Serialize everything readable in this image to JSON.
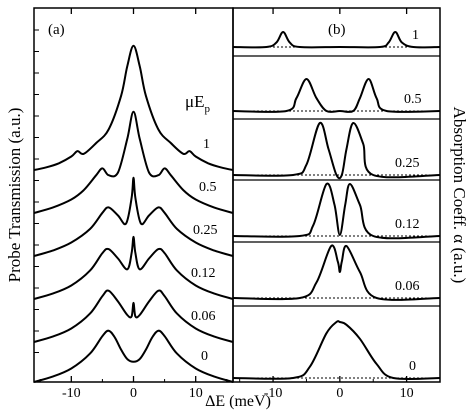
{
  "figure": {
    "ylabel_left": "Probe Transmission (a.u.)",
    "ylabel_right": "Absorption Coeff. α (a.u.)",
    "xlabel": "ΔE (meV)",
    "legend_title_main": "μE",
    "legend_title_sub": "p"
  },
  "chart_data": [
    {
      "type": "line",
      "panel_label": "(a)",
      "xlim": [
        -16,
        16
      ],
      "x_ticks": [
        -10,
        0,
        10
      ],
      "series": [
        {
          "name": "1",
          "x": [
            -16,
            -14,
            -12,
            -10,
            -9,
            -8,
            -6,
            -4,
            -2,
            -1,
            0,
            1,
            2,
            4,
            6,
            8,
            9,
            10,
            12,
            14,
            16
          ],
          "y": [
            1.0,
            1.2,
            1.5,
            2.0,
            2.4,
            2.2,
            3.0,
            4.0,
            6.5,
            8.7,
            10.2,
            8.7,
            6.5,
            4.0,
            3.0,
            2.2,
            2.4,
            2.0,
            1.5,
            1.2,
            1.0
          ]
        },
        {
          "name": "0.5",
          "x": [
            -16,
            -13,
            -10,
            -8,
            -6,
            -5,
            -4,
            -2.5,
            -1,
            0,
            1,
            2.5,
            4,
            5,
            6,
            8,
            10,
            13,
            16
          ],
          "y": [
            1.0,
            1.4,
            2.0,
            2.7,
            3.8,
            4.3,
            3.8,
            4.0,
            6.5,
            8.5,
            6.5,
            4.0,
            3.8,
            4.3,
            3.8,
            2.7,
            2.0,
            1.4,
            1.0
          ]
        },
        {
          "name": "0.25",
          "x": [
            -16,
            -13,
            -10,
            -7,
            -5,
            -4,
            -2.5,
            -1.2,
            -0.3,
            0,
            0.3,
            1.2,
            2.5,
            4,
            5,
            7,
            10,
            13,
            16
          ],
          "y": [
            1.0,
            1.4,
            2.0,
            3.0,
            4.2,
            4.6,
            4.0,
            3.4,
            5.3,
            6.8,
            5.3,
            3.4,
            4.0,
            4.6,
            4.2,
            3.0,
            2.0,
            1.4,
            1.0
          ]
        },
        {
          "name": "0.12",
          "x": [
            -16,
            -13,
            -10,
            -7,
            -5,
            -4,
            -2.5,
            -1,
            -0.3,
            0,
            0.3,
            1,
            2.5,
            4,
            5,
            7,
            10,
            13,
            16
          ],
          "y": [
            1.0,
            1.4,
            2.0,
            3.1,
            4.4,
            4.7,
            4.0,
            3.2,
            4.4,
            5.6,
            4.4,
            3.2,
            4.0,
            4.7,
            4.4,
            3.1,
            2.0,
            1.4,
            1.0
          ]
        },
        {
          "name": "0.06",
          "x": [
            -16,
            -13,
            -10,
            -7,
            -5,
            -4,
            -2.5,
            -1,
            -0.3,
            0,
            0.3,
            1,
            2.5,
            4,
            5,
            7,
            10,
            13,
            16
          ],
          "y": [
            1.0,
            1.4,
            2.0,
            3.1,
            4.4,
            4.8,
            4.0,
            3.0,
            2.9,
            3.9,
            2.9,
            3.0,
            4.0,
            4.8,
            4.4,
            3.1,
            2.0,
            1.4,
            1.0
          ]
        },
        {
          "name": "0",
          "x": [
            -16,
            -13,
            -10,
            -7,
            -5,
            -4,
            -3,
            -2,
            -1,
            0,
            1,
            2,
            3,
            4,
            5,
            7,
            10,
            13,
            16
          ],
          "y": [
            1.0,
            1.4,
            2.0,
            3.1,
            4.4,
            4.8,
            4.3,
            3.4,
            2.7,
            2.5,
            2.7,
            3.4,
            4.3,
            4.8,
            4.4,
            3.1,
            2.0,
            1.4,
            1.0
          ]
        }
      ]
    },
    {
      "type": "line",
      "panel_label": "(b)",
      "xlim": [
        -16,
        15
      ],
      "x_ticks": [
        -10,
        0,
        10
      ],
      "series": [
        {
          "name": "1",
          "x": [
            -16,
            -11,
            -9.5,
            -8.5,
            -7.5,
            -6,
            0,
            6,
            7.3,
            8.3,
            9.3,
            11,
            15
          ],
          "y": [
            0,
            0,
            0.3,
            1.0,
            0.3,
            0,
            0,
            0,
            0.3,
            1.0,
            0.3,
            0,
            0
          ]
        },
        {
          "name": "0.5",
          "x": [
            -16,
            -8,
            -6.5,
            -5,
            -3.5,
            -2,
            0,
            2,
            3,
            4.3,
            5.5,
            7,
            15
          ],
          "y": [
            0,
            0,
            0.4,
            1.0,
            0.4,
            0,
            0,
            0,
            0.4,
            1.0,
            0.4,
            0,
            0
          ]
        },
        {
          "name": "0.25",
          "x": [
            -16,
            -7,
            -5,
            -3,
            -1.7,
            -0.5,
            0.3,
            1,
            2,
            3.5,
            5,
            15
          ],
          "y": [
            0,
            0,
            0.2,
            1.0,
            0.5,
            0,
            0,
            0.5,
            1.0,
            0.6,
            0,
            0
          ]
        },
        {
          "name": "0.12",
          "x": [
            -16,
            -6,
            -4,
            -2,
            -0.8,
            0,
            0.8,
            1.5,
            3,
            5,
            15
          ],
          "y": [
            0,
            0,
            0.2,
            1.0,
            0.6,
            0.02,
            0.6,
            1.0,
            0.6,
            0,
            0
          ]
        },
        {
          "name": "0.06",
          "x": [
            -16,
            -6,
            -3.5,
            -1.3,
            -0.3,
            0,
            0.3,
            1,
            3,
            5.5,
            15
          ],
          "y": [
            0,
            0,
            0.3,
            1.0,
            0.7,
            0.5,
            0.7,
            1.0,
            0.5,
            0,
            0
          ]
        },
        {
          "name": "0",
          "x": [
            -16,
            -7,
            -4.5,
            -2,
            -0.5,
            0,
            1,
            3,
            5.5,
            8,
            15
          ],
          "y": [
            0,
            0,
            0.2,
            0.8,
            1.0,
            1.0,
            0.95,
            0.7,
            0.25,
            0,
            0
          ]
        }
      ]
    }
  ]
}
